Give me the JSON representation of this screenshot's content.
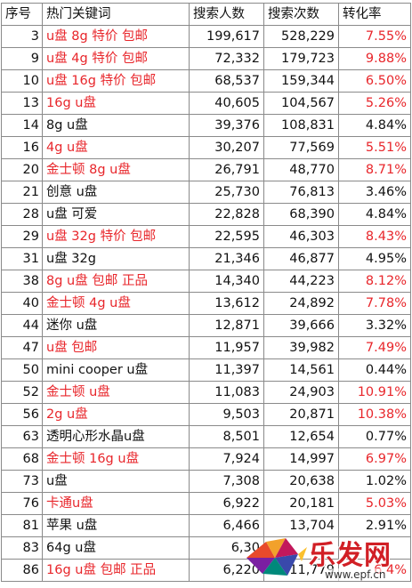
{
  "table": {
    "headers": [
      "序号",
      "热门关键词",
      "搜索人数",
      "搜索次数",
      "转化率"
    ],
    "rows": [
      {
        "rank": "3",
        "keyword": "u盘 8g 特价 包邮",
        "users": "199,617",
        "times": "528,229",
        "rate": "7.55%",
        "red": true
      },
      {
        "rank": "9",
        "keyword": "u盘 4g 特价 包邮",
        "users": "72,332",
        "times": "179,723",
        "rate": "9.88%",
        "red": true
      },
      {
        "rank": "10",
        "keyword": "u盘 16g 特价 包邮",
        "users": "68,537",
        "times": "159,344",
        "rate": "6.50%",
        "red": true
      },
      {
        "rank": "13",
        "keyword": "16g u盘",
        "users": "40,605",
        "times": "104,567",
        "rate": "5.26%",
        "red": true
      },
      {
        "rank": "14",
        "keyword": "8g u盘",
        "users": "39,376",
        "times": "108,831",
        "rate": "4.84%",
        "red": false
      },
      {
        "rank": "16",
        "keyword": "4g u盘",
        "users": "30,207",
        "times": "77,569",
        "rate": "5.51%",
        "red": true
      },
      {
        "rank": "20",
        "keyword": "金士顿 8g u盘",
        "users": "26,791",
        "times": "48,770",
        "rate": "8.71%",
        "red": true
      },
      {
        "rank": "21",
        "keyword": "创意 u盘",
        "users": "25,730",
        "times": "76,813",
        "rate": "3.46%",
        "red": false
      },
      {
        "rank": "28",
        "keyword": "u盘 可爱",
        "users": "22,828",
        "times": "68,390",
        "rate": "4.84%",
        "red": false
      },
      {
        "rank": "29",
        "keyword": "u盘 32g 特价 包邮",
        "users": "22,595",
        "times": "46,303",
        "rate": "8.43%",
        "red": true
      },
      {
        "rank": "31",
        "keyword": "u盘 32g",
        "users": "21,346",
        "times": "46,877",
        "rate": "4.95%",
        "red": false
      },
      {
        "rank": "38",
        "keyword": "8g u盘 包邮 正品",
        "users": "14,340",
        "times": "44,223",
        "rate": "8.12%",
        "red": true
      },
      {
        "rank": "40",
        "keyword": "金士顿 4g u盘",
        "users": "13,612",
        "times": "24,892",
        "rate": "7.78%",
        "red": true
      },
      {
        "rank": "44",
        "keyword": "迷你 u盘",
        "users": "12,871",
        "times": "39,666",
        "rate": "3.32%",
        "red": false
      },
      {
        "rank": "47",
        "keyword": "u盘 包邮",
        "users": "11,957",
        "times": "39,982",
        "rate": "7.49%",
        "red": true
      },
      {
        "rank": "50",
        "keyword": "mini cooper u盘",
        "users": "11,397",
        "times": "14,561",
        "rate": "0.44%",
        "red": false
      },
      {
        "rank": "52",
        "keyword": "金士顿 u盘",
        "users": "11,083",
        "times": "24,903",
        "rate": "10.91%",
        "red": true
      },
      {
        "rank": "56",
        "keyword": "2g u盘",
        "users": "9,503",
        "times": "20,871",
        "rate": "10.38%",
        "red": true
      },
      {
        "rank": "63",
        "keyword": "透明心形水晶u盘",
        "users": "8,501",
        "times": "12,654",
        "rate": "0.77%",
        "red": false
      },
      {
        "rank": "68",
        "keyword": "金士顿 16g u盘",
        "users": "7,924",
        "times": "14,997",
        "rate": "6.97%",
        "red": true
      },
      {
        "rank": "73",
        "keyword": "u盘",
        "users": "7,308",
        "times": "20,638",
        "rate": "1.02%",
        "red": false
      },
      {
        "rank": "76",
        "keyword": "卡通u盘",
        "users": "6,922",
        "times": "20,181",
        "rate": "5.03%",
        "red": true
      },
      {
        "rank": "81",
        "keyword": "苹果 u盘",
        "users": "6,466",
        "times": "13,704",
        "rate": "2.91%",
        "red": false
      },
      {
        "rank": "83",
        "keyword": "64g u盘",
        "users": "6,30",
        "times": "",
        "rate": "",
        "red": false
      },
      {
        "rank": "86",
        "keyword": "16g u盘 包邮 正品",
        "users": "6,220",
        "times": "11,779",
        "rate": "6.4%",
        "red": true
      }
    ]
  },
  "watermark": {
    "logo_text": "乐发网",
    "url": "www.epf.cn"
  },
  "colors": {
    "highlight": "#e8262b",
    "grid": "#8a8a8a"
  }
}
